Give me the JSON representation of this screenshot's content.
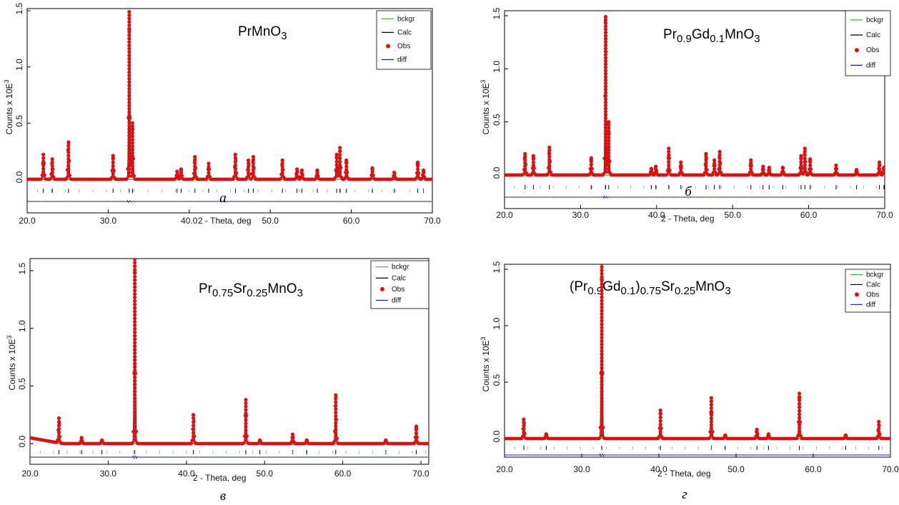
{
  "panels": [
    {
      "id": "a",
      "caption": "а",
      "title_base": "PrMnO",
      "title_html_parts": [
        [
          "PrMnO",
          0
        ],
        [
          "3",
          1
        ]
      ],
      "ylabel": "Counts  x 10E",
      "ylabel_sup": "3",
      "xlabel": "2 - Theta, deg",
      "legend": [
        "bckgr",
        "Calc",
        "Obs",
        "diff"
      ],
      "xticks": [
        "20.0",
        "30.0",
        "40.0",
        "50.0",
        "60.0",
        "70.0"
      ],
      "yticks": [
        "0.0",
        "0.5",
        "1.0",
        "1.5"
      ]
    },
    {
      "id": "b",
      "caption": "б",
      "title_html_parts": [
        [
          "Pr",
          0
        ],
        [
          "0.9",
          1
        ],
        [
          "Gd",
          0
        ],
        [
          "0.1",
          1
        ],
        [
          "MnO",
          0
        ],
        [
          "3",
          1
        ]
      ],
      "ylabel": "Counts  x",
      "ylabel2": "10E",
      "ylabel_sup": "3",
      "xlabel": "2 - Theta, deg",
      "legend": [
        "bckgr",
        "Calc",
        "Obs",
        "diff"
      ],
      "xticks": [
        "20.0",
        "30.0",
        "40.0",
        "50.0",
        "60.0",
        "70.0"
      ],
      "yticks": [
        "0.0",
        "0.5",
        "1.0",
        "1.5"
      ]
    },
    {
      "id": "c",
      "caption": "в",
      "title_html_parts": [
        [
          "Pr",
          0
        ],
        [
          "0.75",
          1
        ],
        [
          "Sr",
          0
        ],
        [
          "0.25",
          1
        ],
        [
          "MnO",
          0
        ],
        [
          "3",
          1
        ]
      ],
      "ylabel": "Counts  x 10E",
      "ylabel_sup": "3",
      "xlabel": "2 - Theta, deg",
      "legend": [
        "bckgr",
        "Calc",
        "Obs",
        "diff"
      ],
      "xticks": [
        "20.0",
        "30.0",
        "40.0",
        "50.0",
        "60.0",
        "70.0"
      ],
      "yticks": [
        "0.0",
        "0.5",
        "1.0",
        "1.5"
      ]
    },
    {
      "id": "d",
      "caption": "г",
      "title_html_parts": [
        [
          "(Pr",
          0
        ],
        [
          "0.9",
          1
        ],
        [
          "Gd",
          0
        ],
        [
          "0.1",
          1
        ],
        [
          ")",
          0
        ],
        [
          "0.75",
          1
        ],
        [
          "Sr",
          0
        ],
        [
          "0.25",
          1
        ],
        [
          "MnO",
          0
        ],
        [
          "3",
          1
        ]
      ],
      "ylabel": "Counts  x 10E",
      "ylabel_sup": "3",
      "xlabel": "2 - Theta, deg",
      "legend": [
        "bckgr",
        "Calc",
        "Obs",
        "diff"
      ],
      "xticks": [
        "20.0",
        "30.0",
        "40.0",
        "50.0",
        "60.0",
        "70.0"
      ],
      "yticks": [
        "0.0",
        "0.5",
        "1.0",
        "1.5"
      ]
    }
  ],
  "colors": {
    "bckgr": "#2db82d",
    "calc": "#000000",
    "obs": "#dd1111",
    "diff": "#1a1aa0"
  },
  "chart_data": [
    {
      "type": "scatter",
      "title": "PrMnO3",
      "xlabel": "2 - Theta, deg",
      "ylabel": "Counts x 10E3",
      "xlim": [
        20,
        70
      ],
      "ylim": [
        -0.1,
        1.6
      ],
      "background": 0.0,
      "peaks": [
        [
          22.0,
          0.22
        ],
        [
          23.1,
          0.18
        ],
        [
          25.1,
          0.33
        ],
        [
          30.6,
          0.21
        ],
        [
          32.6,
          1.49
        ],
        [
          33.0,
          0.5
        ],
        [
          38.5,
          0.07
        ],
        [
          39.0,
          0.09
        ],
        [
          40.7,
          0.2
        ],
        [
          42.4,
          0.14
        ],
        [
          45.7,
          0.22
        ],
        [
          47.3,
          0.17
        ],
        [
          47.9,
          0.2
        ],
        [
          51.5,
          0.17
        ],
        [
          53.3,
          0.09
        ],
        [
          53.9,
          0.08
        ],
        [
          55.8,
          0.08
        ],
        [
          58.2,
          0.22
        ],
        [
          58.6,
          0.28
        ],
        [
          59.4,
          0.17
        ],
        [
          62.6,
          0.1
        ],
        [
          65.3,
          0.06
        ],
        [
          68.2,
          0.15
        ],
        [
          68.9,
          0.08
        ]
      ],
      "series": [
        {
          "name": "bckgr"
        },
        {
          "name": "Calc"
        },
        {
          "name": "Obs"
        },
        {
          "name": "diff"
        }
      ]
    },
    {
      "type": "scatter",
      "title": "Pr0.9Gd0.1MnO3",
      "xlabel": "2 - Theta, deg",
      "ylabel": "Counts x 10E3",
      "xlim": [
        20,
        70
      ],
      "ylim": [
        -0.25,
        1.6
      ],
      "background": 0.0,
      "peaks": [
        [
          22.7,
          0.2
        ],
        [
          23.8,
          0.18
        ],
        [
          25.9,
          0.26
        ],
        [
          31.4,
          0.16
        ],
        [
          33.3,
          1.49
        ],
        [
          33.7,
          0.5
        ],
        [
          39.3,
          0.06
        ],
        [
          39.9,
          0.08
        ],
        [
          41.6,
          0.25
        ],
        [
          43.2,
          0.12
        ],
        [
          46.5,
          0.2
        ],
        [
          47.6,
          0.14
        ],
        [
          48.3,
          0.22
        ],
        [
          52.4,
          0.14
        ],
        [
          54.0,
          0.08
        ],
        [
          54.8,
          0.07
        ],
        [
          56.6,
          0.07
        ],
        [
          59.0,
          0.18
        ],
        [
          59.5,
          0.25
        ],
        [
          60.2,
          0.15
        ],
        [
          63.6,
          0.09
        ],
        [
          66.3,
          0.05
        ],
        [
          69.3,
          0.12
        ],
        [
          69.9,
          0.07
        ]
      ],
      "series": [
        {
          "name": "bckgr"
        },
        {
          "name": "Calc"
        },
        {
          "name": "Obs"
        },
        {
          "name": "diff"
        }
      ]
    },
    {
      "type": "scatter",
      "title": "Pr0.75Sr0.25MnO3",
      "xlabel": "2 - Theta, deg",
      "ylabel": "Counts x 10E3",
      "xlim": [
        20,
        71
      ],
      "ylim": [
        -0.15,
        1.75
      ],
      "background": 0.0,
      "peaks": [
        [
          23.7,
          0.22
        ],
        [
          26.6,
          0.05
        ],
        [
          29.2,
          0.03
        ],
        [
          33.4,
          1.66
        ],
        [
          40.9,
          0.25
        ],
        [
          47.6,
          0.38
        ],
        [
          49.4,
          0.03
        ],
        [
          53.6,
          0.08
        ],
        [
          55.4,
          0.03
        ],
        [
          59.1,
          0.42
        ],
        [
          65.5,
          0.03
        ],
        [
          69.4,
          0.15
        ]
      ],
      "series": [
        {
          "name": "bckgr"
        },
        {
          "name": "Calc"
        },
        {
          "name": "Obs"
        },
        {
          "name": "diff"
        }
      ]
    },
    {
      "type": "scatter",
      "title": "(Pr0.9Gd0.1)0.75Sr0.25MnO3",
      "xlabel": "2 - Theta, deg",
      "ylabel": "Counts x 10E3",
      "xlim": [
        20,
        70
      ],
      "ylim": [
        -0.15,
        1.65
      ],
      "background": 0.0,
      "peaks": [
        [
          22.5,
          0.17
        ],
        [
          25.4,
          0.04
        ],
        [
          32.6,
          1.58
        ],
        [
          40.2,
          0.25
        ],
        [
          46.8,
          0.36
        ],
        [
          48.6,
          0.03
        ],
        [
          52.7,
          0.08
        ],
        [
          54.2,
          0.04
        ],
        [
          58.2,
          0.4
        ],
        [
          64.2,
          0.03
        ],
        [
          68.5,
          0.15
        ]
      ],
      "series": [
        {
          "name": "bckgr"
        },
        {
          "name": "Calc"
        },
        {
          "name": "Obs"
        },
        {
          "name": "diff"
        }
      ]
    }
  ]
}
